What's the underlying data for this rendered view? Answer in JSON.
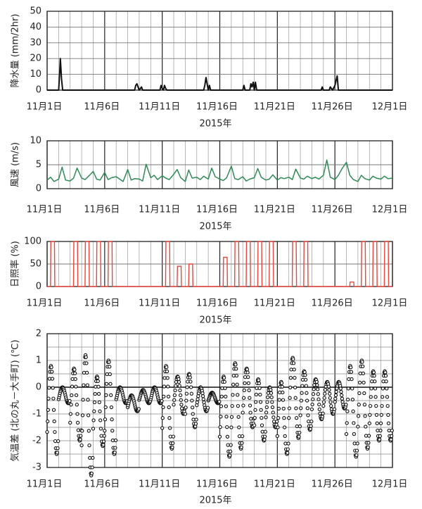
{
  "chart_data": [
    {
      "type": "line",
      "ylabel": "降水量 (mm/2hr)",
      "xlabel": "2015年",
      "ylim": [
        0,
        50
      ],
      "yticks": [
        0,
        10,
        20,
        30,
        40,
        50
      ],
      "xticks": [
        "11月1日",
        "11月6日",
        "11月11日",
        "11月16日",
        "11月21日",
        "11月26日",
        "12月1日"
      ],
      "xrange_days": [
        1,
        31
      ],
      "grid": "daily vertical, 10 mm horizontal",
      "line_color": "#111111",
      "series": [
        {
          "x": [
            1,
            2.0,
            2.1,
            2.15,
            2.25,
            2.35,
            8.6,
            8.7,
            8.8,
            8.9,
            9.0,
            9.2,
            9.3,
            9.4,
            10.8,
            10.9,
            11.0,
            11.1,
            11.2,
            11.3,
            11.4,
            14.6,
            14.7,
            14.8,
            14.9,
            15.0,
            15.1,
            15.2,
            15.4,
            18.0,
            18.1,
            18.2,
            18.6,
            18.7,
            18.8,
            18.9,
            19.0,
            19.1,
            19.2,
            24.8,
            24.9,
            25.0,
            25.5,
            25.6,
            25.8,
            26.0,
            26.1,
            26.2,
            26.3,
            31
          ],
          "y": [
            0,
            0,
            12,
            20,
            7,
            0,
            0,
            3,
            4,
            2,
            0,
            2,
            0,
            0,
            0,
            3,
            1,
            0,
            3,
            1,
            0,
            0,
            3,
            8,
            4,
            0,
            3,
            0,
            0,
            0,
            3,
            0,
            0,
            4,
            2,
            5,
            0,
            5,
            0,
            0,
            2,
            0,
            0,
            2,
            0,
            3,
            6,
            9,
            0,
            0
          ]
        }
      ]
    },
    {
      "type": "line",
      "ylabel": "風速 (m/s)",
      "xlabel": "2015年",
      "ylim": [
        0,
        10
      ],
      "yticks": [
        0,
        5,
        10
      ],
      "xticks": [
        "11月1日",
        "11月6日",
        "11月11日",
        "11月16日",
        "11月21日",
        "11月26日",
        "12月1日"
      ],
      "xrange_days": [
        1,
        31
      ],
      "grid": "daily vertical, 5 m/s horizontal",
      "line_color": "#2e8b57",
      "series": [
        {
          "x": [
            1,
            1.3,
            1.6,
            2.0,
            2.3,
            2.6,
            3.0,
            3.3,
            3.6,
            4.0,
            4.3,
            4.6,
            5.0,
            5.3,
            5.6,
            6.0,
            6.3,
            6.6,
            7.0,
            7.3,
            7.6,
            8.0,
            8.3,
            8.6,
            9.0,
            9.3,
            9.6,
            10.0,
            10.3,
            10.6,
            11.0,
            11.3,
            11.6,
            12.0,
            12.3,
            12.6,
            13.0,
            13.3,
            13.6,
            14.0,
            14.3,
            14.6,
            15.0,
            15.3,
            15.6,
            16.0,
            16.3,
            16.6,
            17.0,
            17.3,
            17.6,
            18.0,
            18.3,
            18.6,
            19.0,
            19.3,
            19.6,
            20.0,
            20.3,
            20.6,
            21.0,
            21.3,
            21.6,
            22.0,
            22.3,
            22.6,
            23.0,
            23.3,
            23.6,
            24.0,
            24.3,
            24.6,
            25.0,
            25.3,
            25.6,
            26.0,
            26.3,
            26.6,
            27.0,
            27.3,
            27.6,
            28.0,
            28.3,
            28.6,
            29.0,
            29.3,
            29.6,
            30.0,
            30.3,
            30.6,
            31
          ],
          "y": [
            1.8,
            2.4,
            1.5,
            2.0,
            4.5,
            1.8,
            1.6,
            2.2,
            4.3,
            2.2,
            1.9,
            2.6,
            3.6,
            2.0,
            1.8,
            3.4,
            1.9,
            2.3,
            2.5,
            2.0,
            1.5,
            4.0,
            1.8,
            2.1,
            2.0,
            1.6,
            5.1,
            2.3,
            2.8,
            1.9,
            2.7,
            2.2,
            1.9,
            3.0,
            4.0,
            2.3,
            1.5,
            3.9,
            2.2,
            2.4,
            1.9,
            2.6,
            2.0,
            4.3,
            2.5,
            2.0,
            1.7,
            2.3,
            4.7,
            2.1,
            1.9,
            2.5,
            1.6,
            2.0,
            2.3,
            4.2,
            2.4,
            1.8,
            2.0,
            2.9,
            1.8,
            2.3,
            2.1,
            2.4,
            1.9,
            4.1,
            2.2,
            2.0,
            2.6,
            2.1,
            2.4,
            2.0,
            2.8,
            6.0,
            2.4,
            1.9,
            2.8,
            4.1,
            5.5,
            2.8,
            1.9,
            1.5,
            2.8,
            2.1,
            1.8,
            2.6,
            2.2,
            2.0,
            2.6,
            2.1,
            2.2
          ]
        }
      ]
    },
    {
      "type": "line",
      "ylabel": "日照率 (%)",
      "xlabel": "2015年",
      "ylim": [
        0,
        100
      ],
      "yticks": [
        0,
        50,
        100
      ],
      "xticks": [
        "11月1日",
        "11月6日",
        "11月11日",
        "11月16日",
        "11月21日",
        "11月26日",
        "12月1日"
      ],
      "xrange_days": [
        1,
        31
      ],
      "grid": "daily vertical, 50% horizontal",
      "line_color": "#e8463c",
      "daylight_start_hour": 7,
      "daylight_end_hour": 16,
      "daily_sunshine_peak_percent": [
        100,
        0,
        100,
        100,
        100,
        100,
        0,
        0,
        0,
        0,
        100,
        45,
        50,
        0,
        0,
        65,
        100,
        100,
        100,
        100,
        0,
        100,
        100,
        0,
        0,
        0,
        10,
        100,
        100,
        100
      ]
    },
    {
      "type": "scatter",
      "ylabel": "気温差 (北の丸－大手町) (℃)",
      "xlabel": "2015年",
      "ylim": [
        -3,
        2
      ],
      "yticks": [
        -3,
        -2,
        -1,
        0,
        1,
        2
      ],
      "xticks": [
        "11月1日",
        "11月6日",
        "11月11日",
        "11月16日",
        "11月21日",
        "11月26日",
        "12月1日"
      ],
      "xrange_days": [
        1,
        31
      ],
      "grid": "daily vertical, 0.5 ℃ horizontal",
      "marker": "open circle",
      "marker_color": "#111111",
      "daily_min_c": [
        -2.5,
        -0.6,
        -2.0,
        -3.3,
        -2.2,
        -2.5,
        -0.6,
        -0.9,
        -0.6,
        -0.6,
        -2.3,
        -1.0,
        -1.5,
        -0.9,
        -0.6,
        -2.6,
        -2.3,
        -1.5,
        -2.0,
        -1.5,
        -2.5,
        -1.9,
        -1.6,
        -1.2,
        -1.0,
        -0.8,
        -2.6,
        -2.3,
        -2.0,
        -2.0
      ],
      "daily_max_c": [
        0.8,
        0.0,
        0.7,
        1.2,
        0.4,
        1.0,
        0.0,
        -0.3,
        -0.1,
        0.0,
        0.8,
        0.4,
        0.5,
        0.0,
        -0.2,
        0.4,
        0.9,
        0.7,
        0.3,
        0.0,
        0.2,
        1.1,
        0.6,
        0.3,
        0.2,
        0.2,
        0.8,
        1.0,
        0.6,
        0.6
      ],
      "cool_at_hour": 20
    }
  ]
}
